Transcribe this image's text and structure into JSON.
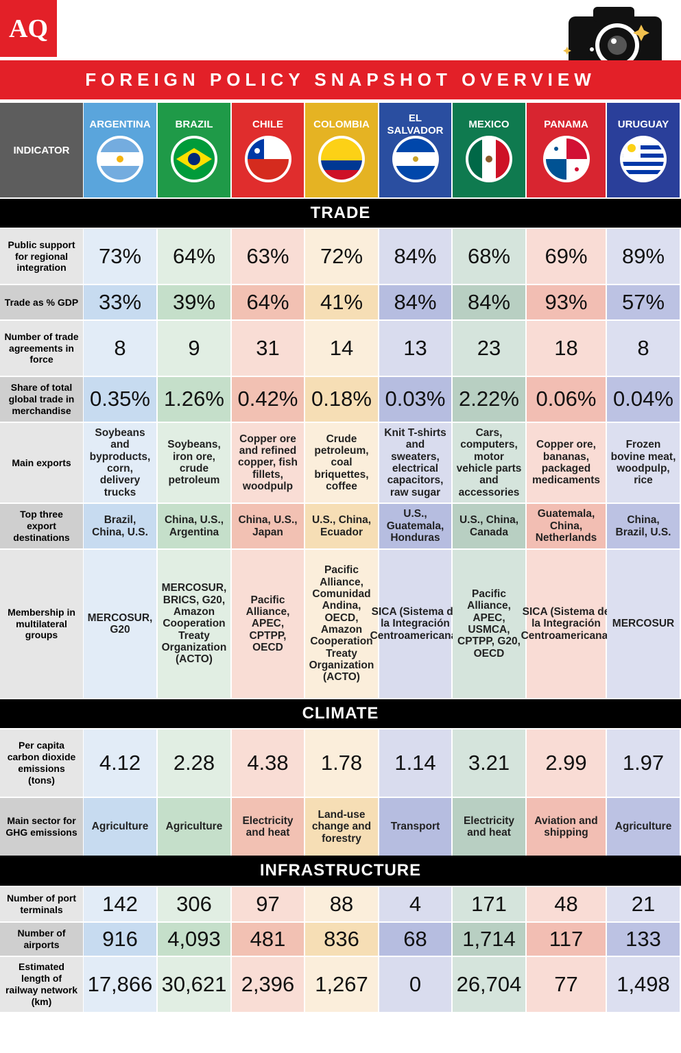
{
  "header": {
    "logo": "AQ",
    "title": "FOREIGN POLICY SNAPSHOT OVERVIEW"
  },
  "table": {
    "indicator_header": "INDICATOR",
    "countries": [
      "ARGENTINA",
      "BRAZIL",
      "CHILE",
      "COLOMBIA",
      "EL SALVADOR",
      "MEXICO",
      "PANAMA",
      "URUGUAY"
    ],
    "sections": [
      {
        "title": "TRADE",
        "rows": [
          {
            "indicator": "Public support for regional integration",
            "cells": [
              "73%",
              "64%",
              "63%",
              "72%",
              "84%",
              "68%",
              "69%",
              "89%"
            ]
          },
          {
            "indicator": "Trade as % GDP",
            "cells": [
              "33%",
              "39%",
              "64%",
              "41%",
              "84%",
              "84%",
              "93%",
              "57%"
            ]
          },
          {
            "indicator": "Number of trade agreements in force",
            "cells": [
              "8",
              "9",
              "31",
              "14",
              "13",
              "23",
              "18",
              "8"
            ]
          },
          {
            "indicator": "Share of total global trade in merchandise",
            "cells": [
              "0.35%",
              "1.26%",
              "0.42%",
              "0.18%",
              "0.03%",
              "2.22%",
              "0.06%",
              "0.04%"
            ]
          },
          {
            "indicator": "Main exports",
            "cells": [
              "Soybeans and byproducts, corn, delivery trucks",
              "Soybeans, iron ore, crude petroleum",
              "Copper ore and refined copper, fish fillets, woodpulp",
              "Crude petroleum, coal briquettes, coffee",
              "Knit T-shirts and sweaters, electrical capacitors, raw sugar",
              "Cars, computers, motor vehicle parts and accessories",
              "Copper ore, bananas, packaged medicaments",
              "Frozen bovine meat, woodpulp, rice"
            ]
          },
          {
            "indicator": "Top three export destinations",
            "cells": [
              "Brazil, China, U.S.",
              "China, U.S., Argentina",
              "China, U.S., Japan",
              "U.S., China, Ecuador",
              "U.S., Guatemala, Honduras",
              "U.S., China, Canada",
              "Guatemala, China, Netherlands",
              "China, Brazil, U.S."
            ]
          },
          {
            "indicator": "Membership in multilateral groups",
            "cells": [
              "MERCOSUR, G20",
              "MERCOSUR, BRICS, G20, Amazon Cooperation Treaty Organization (ACTO)",
              "Pacific Alliance, APEC, CPTPP, OECD",
              "Pacific Alliance, Comunidad Andina, OECD, Amazon Cooperation Treaty Organization (ACTO)",
              "SICA (Sistema de la Integración Centroamericana)",
              "Pacific Alliance, APEC, USMCA, CPTPP, G20, OECD",
              "SICA (Sistema de la Integración Centroamericana)",
              "MERCOSUR"
            ]
          }
        ]
      },
      {
        "title": "CLIMATE",
        "rows": [
          {
            "indicator": "Per capita carbon dioxide emissions (tons)",
            "cells": [
              "4.12",
              "2.28",
              "4.38",
              "1.78",
              "1.14",
              "3.21",
              "2.99",
              "1.97"
            ]
          },
          {
            "indicator": "Main sector for GHG emissions",
            "cells": [
              "Agriculture",
              "Agriculture",
              "Electricity and heat",
              "Land-use change and forestry",
              "Transport",
              "Electricity and heat",
              "Aviation and shipping",
              "Agriculture"
            ]
          }
        ]
      },
      {
        "title": "INFRASTRUCTURE",
        "rows": [
          {
            "indicator": "Number of port terminals",
            "cells": [
              "142",
              "306",
              "97",
              "88",
              "4",
              "171",
              "48",
              "21"
            ]
          },
          {
            "indicator": "Number of airports",
            "cells": [
              "916",
              "4,093",
              "481",
              "836",
              "68",
              "1,714",
              "117",
              "133"
            ]
          },
          {
            "indicator": "Estimated length of railway network (km)",
            "cells": [
              "17,866",
              "30,621",
              "2,396",
              "1,267",
              "0",
              "26,704",
              "77",
              "1,498"
            ]
          }
        ]
      }
    ]
  }
}
